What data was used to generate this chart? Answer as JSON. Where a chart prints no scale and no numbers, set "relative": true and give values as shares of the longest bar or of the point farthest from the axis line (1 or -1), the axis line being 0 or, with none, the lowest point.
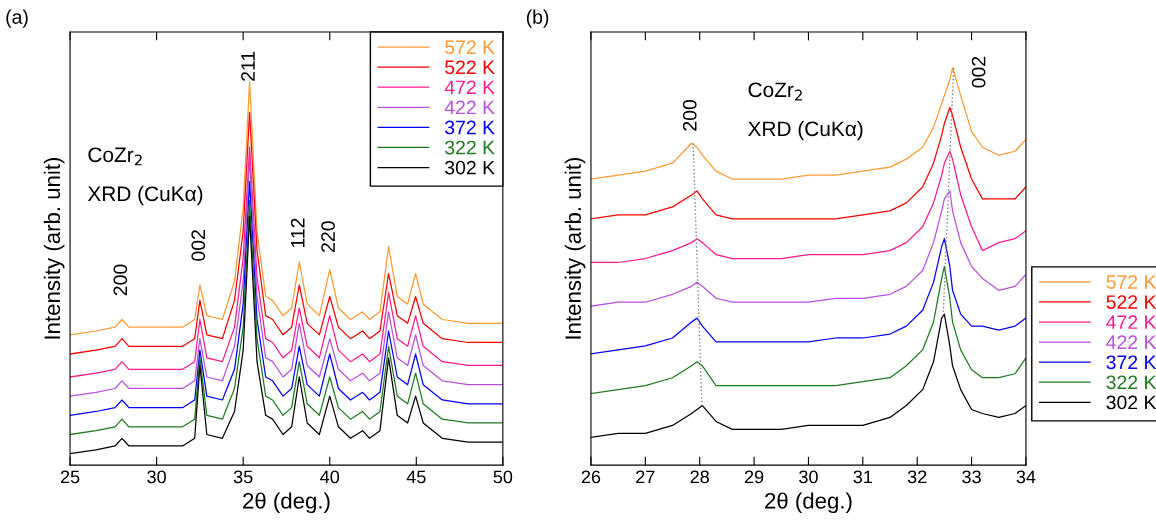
{
  "chart_data": [
    {
      "type": "line",
      "title": "(a)",
      "xlabel": "2θ (deg.)",
      "ylabel": "Intensity (arb. unit)",
      "relative": true,
      "xlim": [
        25,
        50
      ],
      "xticks": [
        25,
        30,
        35,
        40,
        45,
        50
      ],
      "tick_labels": "x",
      "legend": "top right",
      "x": [
        25,
        26.5,
        27.6,
        28.0,
        28.4,
        30,
        31.5,
        32.2,
        32.5,
        32.9,
        33.8,
        34.5,
        35.0,
        35.37,
        35.8,
        36.3,
        36.7,
        37.3,
        37.8,
        38.24,
        38.7,
        39.4,
        40.0,
        40.5,
        41.2,
        41.9,
        42.3,
        42.9,
        43.4,
        43.9,
        44.5,
        44.96,
        45.4,
        46.5,
        48,
        50
      ],
      "annotations": [
        "CoZr$_{2}$",
        "XRD (CuKα)",
        "200",
        "002",
        "211",
        "112",
        "220"
      ],
      "series": [
        {
          "name": "572 K",
          "color": "#ff9933",
          "values": [
            0.34,
            0.35,
            0.36,
            0.38,
            0.36,
            0.36,
            0.36,
            0.38,
            0.47,
            0.39,
            0.38,
            0.48,
            0.67,
            1.0,
            0.61,
            0.44,
            0.43,
            0.39,
            0.41,
            0.53,
            0.42,
            0.39,
            0.51,
            0.41,
            0.38,
            0.4,
            0.38,
            0.4,
            0.57,
            0.44,
            0.42,
            0.5,
            0.42,
            0.38,
            0.37,
            0.37
          ]
        },
        {
          "name": "522 K",
          "color": "#ff0000",
          "values": [
            0.29,
            0.3,
            0.31,
            0.33,
            0.31,
            0.31,
            0.31,
            0.33,
            0.43,
            0.34,
            0.33,
            0.43,
            0.61,
            0.92,
            0.56,
            0.39,
            0.38,
            0.34,
            0.36,
            0.47,
            0.37,
            0.34,
            0.44,
            0.36,
            0.33,
            0.35,
            0.33,
            0.35,
            0.5,
            0.39,
            0.37,
            0.44,
            0.37,
            0.33,
            0.32,
            0.32
          ]
        },
        {
          "name": "472 K",
          "color": "#ff1a8c",
          "values": [
            0.23,
            0.24,
            0.25,
            0.27,
            0.25,
            0.25,
            0.25,
            0.27,
            0.38,
            0.28,
            0.27,
            0.36,
            0.54,
            0.83,
            0.49,
            0.33,
            0.32,
            0.28,
            0.3,
            0.41,
            0.31,
            0.28,
            0.39,
            0.3,
            0.27,
            0.29,
            0.27,
            0.29,
            0.45,
            0.33,
            0.31,
            0.39,
            0.31,
            0.27,
            0.26,
            0.26
          ]
        },
        {
          "name": "422 K",
          "color": "#b84fe0",
          "values": [
            0.18,
            0.19,
            0.2,
            0.22,
            0.2,
            0.2,
            0.2,
            0.22,
            0.33,
            0.23,
            0.22,
            0.31,
            0.48,
            0.8,
            0.44,
            0.28,
            0.27,
            0.23,
            0.25,
            0.37,
            0.26,
            0.23,
            0.33,
            0.25,
            0.22,
            0.24,
            0.22,
            0.24,
            0.4,
            0.28,
            0.26,
            0.34,
            0.26,
            0.22,
            0.21,
            0.21
          ]
        },
        {
          "name": "372 K",
          "color": "#0000ff",
          "values": [
            0.13,
            0.14,
            0.15,
            0.17,
            0.15,
            0.15,
            0.15,
            0.17,
            0.3,
            0.18,
            0.17,
            0.25,
            0.42,
            0.74,
            0.38,
            0.23,
            0.22,
            0.18,
            0.2,
            0.31,
            0.21,
            0.18,
            0.29,
            0.2,
            0.17,
            0.19,
            0.17,
            0.19,
            0.35,
            0.23,
            0.21,
            0.29,
            0.21,
            0.17,
            0.16,
            0.16
          ]
        },
        {
          "name": "322 K",
          "color": "#1e7a1e",
          "values": [
            0.08,
            0.09,
            0.1,
            0.12,
            0.1,
            0.1,
            0.1,
            0.12,
            0.28,
            0.13,
            0.12,
            0.2,
            0.36,
            0.69,
            0.33,
            0.18,
            0.17,
            0.13,
            0.15,
            0.27,
            0.16,
            0.13,
            0.23,
            0.15,
            0.12,
            0.14,
            0.12,
            0.14,
            0.31,
            0.18,
            0.16,
            0.24,
            0.16,
            0.12,
            0.11,
            0.11
          ]
        },
        {
          "name": "302 K",
          "color": "#000000",
          "values": [
            0.03,
            0.04,
            0.05,
            0.07,
            0.05,
            0.05,
            0.05,
            0.07,
            0.26,
            0.08,
            0.07,
            0.14,
            0.3,
            0.65,
            0.27,
            0.13,
            0.12,
            0.08,
            0.1,
            0.23,
            0.11,
            0.08,
            0.18,
            0.1,
            0.07,
            0.09,
            0.07,
            0.09,
            0.28,
            0.13,
            0.11,
            0.18,
            0.11,
            0.07,
            0.06,
            0.06
          ]
        }
      ]
    },
    {
      "type": "line",
      "title": "(b)",
      "xlabel": "2θ (deg.)",
      "ylabel": "Intensity (arb. unit)",
      "relative": true,
      "xlim": [
        26,
        34
      ],
      "xticks": [
        26,
        27,
        28,
        29,
        30,
        31,
        32,
        33,
        34
      ],
      "tick_labels": "x",
      "legend": "right",
      "x": [
        26,
        26.5,
        27,
        27.5,
        27.85,
        27.95,
        28.05,
        28.3,
        28.6,
        29,
        29.5,
        30,
        30.5,
        31,
        31.5,
        31.8,
        32.1,
        32.3,
        32.45,
        32.5,
        32.6,
        32.65,
        32.8,
        33.0,
        33.2,
        33.5,
        33.8,
        34
      ],
      "annotations": [
        "CoZr$_{2}$",
        "XRD (CuKα)",
        "200",
        "002"
      ],
      "series": [
        {
          "name": "572 K",
          "color": "#ff9933",
          "values": [
            0.72,
            0.73,
            0.74,
            0.76,
            0.81,
            0.8,
            0.78,
            0.74,
            0.72,
            0.72,
            0.72,
            0.73,
            0.73,
            0.74,
            0.75,
            0.77,
            0.8,
            0.85,
            0.91,
            0.93,
            0.97,
            1.0,
            0.93,
            0.84,
            0.8,
            0.78,
            0.79,
            0.82
          ]
        },
        {
          "name": "522 K",
          "color": "#ff0000",
          "values": [
            0.62,
            0.63,
            0.63,
            0.65,
            0.68,
            0.69,
            0.67,
            0.63,
            0.62,
            0.62,
            0.62,
            0.62,
            0.62,
            0.63,
            0.64,
            0.66,
            0.7,
            0.76,
            0.83,
            0.86,
            0.9,
            0.88,
            0.8,
            0.72,
            0.67,
            0.67,
            0.67,
            0.7
          ]
        },
        {
          "name": "472 K",
          "color": "#ff1a8c",
          "values": [
            0.51,
            0.51,
            0.52,
            0.54,
            0.56,
            0.57,
            0.56,
            0.53,
            0.52,
            0.52,
            0.52,
            0.53,
            0.53,
            0.53,
            0.54,
            0.56,
            0.6,
            0.66,
            0.73,
            0.76,
            0.79,
            0.77,
            0.68,
            0.6,
            0.54,
            0.56,
            0.57,
            0.59
          ]
        },
        {
          "name": "422 K",
          "color": "#b84fe0",
          "values": [
            0.4,
            0.41,
            0.41,
            0.43,
            0.45,
            0.46,
            0.45,
            0.42,
            0.41,
            0.41,
            0.41,
            0.41,
            0.42,
            0.42,
            0.43,
            0.45,
            0.49,
            0.56,
            0.64,
            0.67,
            0.69,
            0.64,
            0.56,
            0.5,
            0.47,
            0.44,
            0.45,
            0.48
          ]
        },
        {
          "name": "372 K",
          "color": "#0000ff",
          "values": [
            0.28,
            0.29,
            0.3,
            0.32,
            0.36,
            0.37,
            0.35,
            0.31,
            0.31,
            0.31,
            0.31,
            0.31,
            0.32,
            0.32,
            0.33,
            0.35,
            0.39,
            0.46,
            0.55,
            0.57,
            0.5,
            0.44,
            0.38,
            0.35,
            0.35,
            0.34,
            0.35,
            0.37
          ]
        },
        {
          "name": "322 K",
          "color": "#1e7a1e",
          "values": [
            0.18,
            0.19,
            0.2,
            0.22,
            0.25,
            0.26,
            0.25,
            0.2,
            0.2,
            0.2,
            0.2,
            0.2,
            0.2,
            0.21,
            0.22,
            0.25,
            0.29,
            0.36,
            0.47,
            0.5,
            0.42,
            0.36,
            0.29,
            0.24,
            0.22,
            0.22,
            0.23,
            0.27
          ]
        },
        {
          "name": "302 K",
          "color": "#000000",
          "values": [
            0.07,
            0.08,
            0.08,
            0.1,
            0.13,
            0.14,
            0.15,
            0.11,
            0.09,
            0.09,
            0.09,
            0.1,
            0.1,
            0.1,
            0.12,
            0.15,
            0.19,
            0.26,
            0.37,
            0.38,
            0.3,
            0.25,
            0.19,
            0.14,
            0.13,
            0.12,
            0.13,
            0.15
          ]
        },
        {
          "type": "line",
          "color": "#808080",
          "line_style": "dotted",
          "x": [
            27.88,
            28.04
          ],
          "values": [
            0.81,
            0.15
          ]
        },
        {
          "type": "line",
          "color": "#808080",
          "line_style": "dotted",
          "x": [
            32.67,
            32.48
          ],
          "values": [
            1.0,
            0.38
          ]
        }
      ]
    }
  ]
}
